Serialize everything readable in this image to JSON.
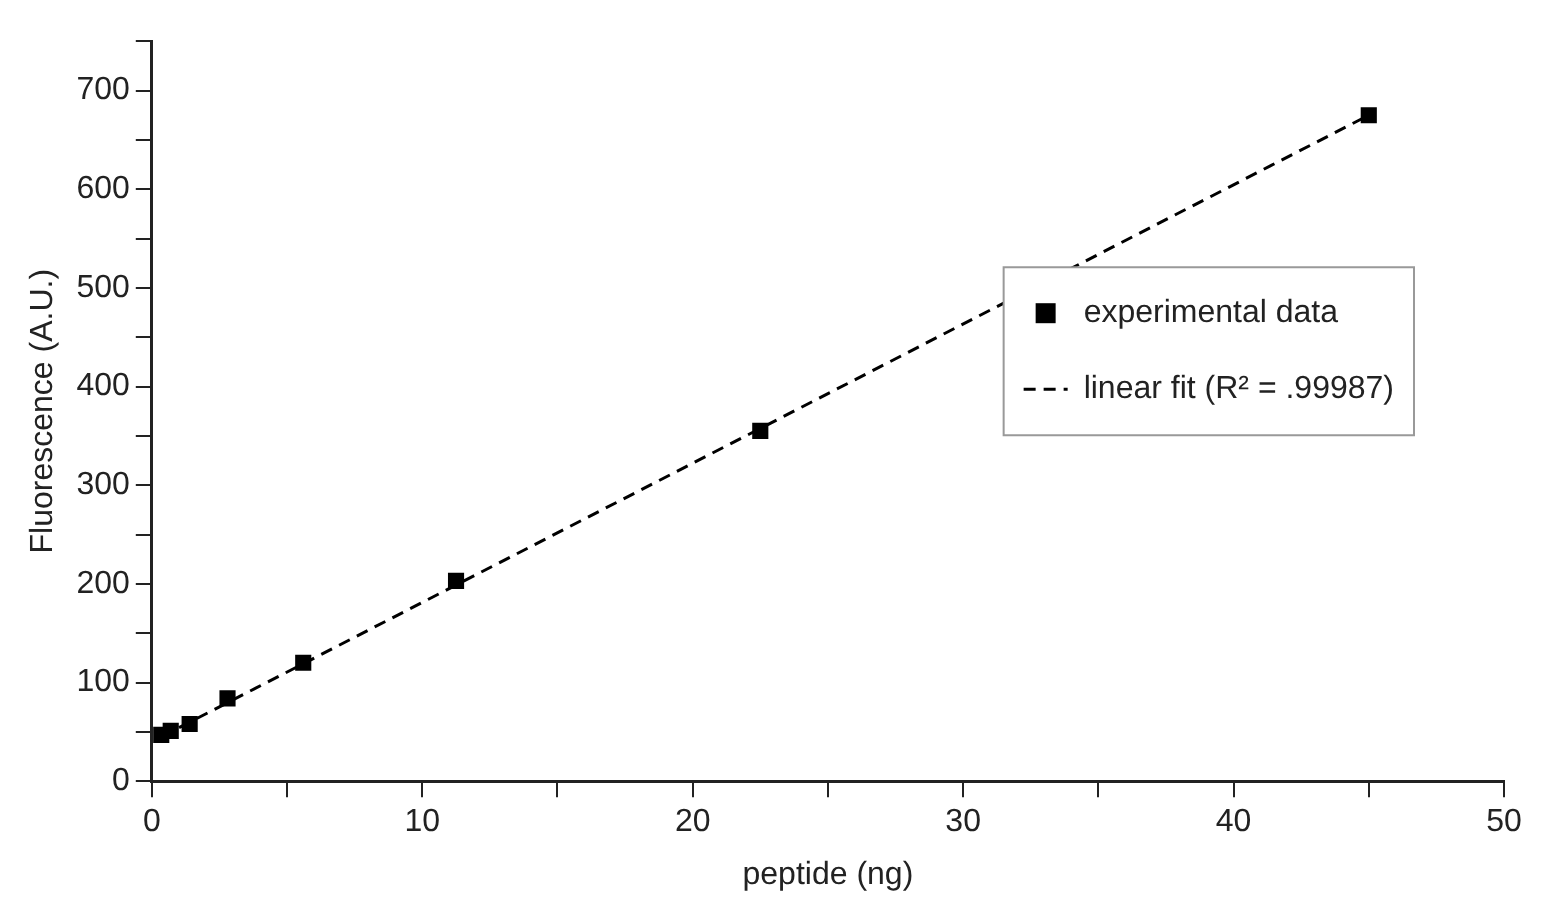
{
  "chart_data": {
    "type": "scatter",
    "xlabel": "peptide (ng)",
    "ylabel": "Fluorescence (A.U.)",
    "xlim": [
      0,
      50
    ],
    "ylim": [
      0,
      750
    ],
    "xticks": [
      0,
      {
        "value": 5,
        "label": null
      },
      10,
      {
        "value": 15,
        "label": null
      },
      20,
      {
        "value": 25,
        "label": null
      },
      30,
      {
        "value": 35,
        "label": null
      },
      40,
      {
        "value": 45,
        "label": null
      },
      50
    ],
    "yticks": [
      0,
      {
        "value": 50,
        "label": null
      },
      100,
      {
        "value": 150,
        "label": null
      },
      200,
      {
        "value": 250,
        "label": null
      },
      300,
      {
        "value": 350,
        "label": null
      },
      400,
      {
        "value": 450,
        "label": null
      },
      500,
      {
        "value": 550,
        "label": null
      },
      600,
      {
        "value": 650,
        "label": null
      },
      700,
      {
        "value": 750,
        "label": null
      }
    ],
    "grid": false,
    "legend": "right",
    "marker": "square",
    "series": [
      {
        "name": "experimental data",
        "type": "scatter",
        "color": "#000000",
        "x": [
          0.35,
          0.7,
          1.4,
          2.8,
          5.6,
          11.25,
          22.5,
          45
        ],
        "values": [
          47,
          51,
          58,
          84,
          120,
          203,
          355,
          675
        ]
      },
      {
        "name": "linear fit (R² = .99987)",
        "type": "line",
        "color": "#000000",
        "marker": "none",
        "line_style": "dashed",
        "x": [
          0.35,
          45
        ],
        "values": [
          45,
          675
        ]
      }
    ]
  }
}
